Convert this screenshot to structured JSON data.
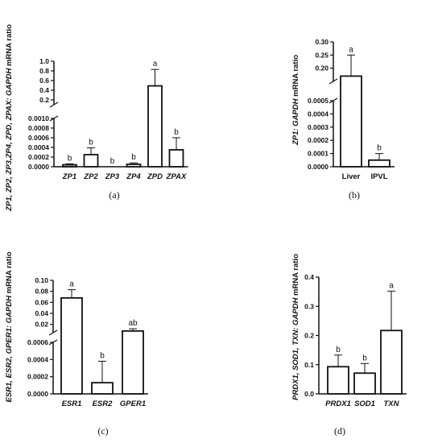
{
  "chart_data": [
    {
      "id": "a",
      "type": "bar",
      "panel_label": "(a)",
      "ylabel_parts": [
        {
          "text": "ZP1, ZP2, ZP3,ZP4, ZPD, ZPAX: GAPDH",
          "italic": true
        },
        {
          "text": " mRNA ratio",
          "italic": false
        }
      ],
      "categories": [
        "ZP1",
        "ZP2",
        "ZP3",
        "ZP4",
        "ZPD",
        "ZPAX"
      ],
      "values": [
        4e-05,
        0.00025,
        0.0,
        5e-05,
        0.49,
        0.00035
      ],
      "errors": [
        2e-05,
        0.00014,
        0.0,
        3e-05,
        0.34,
        0.00025
      ],
      "significance": [
        "b",
        "b",
        "b",
        "b",
        "a",
        "b"
      ],
      "axis_breaks": true,
      "lower_ylim": [
        0,
        0.001
      ],
      "lower_ticks": [
        "0.0000",
        "0.0002",
        "0.0004",
        "0.0006",
        "0.0008",
        "0.0010"
      ],
      "upper_ylim": [
        0.1,
        1.0
      ],
      "upper_ticks": [
        "0.2",
        "0.4",
        "0.6",
        "0.8",
        "1.0"
      ]
    },
    {
      "id": "b",
      "type": "bar",
      "panel_label": "(b)",
      "ylabel_parts": [
        {
          "text": "ZP1: GAPDH",
          "italic": true
        },
        {
          "text": " mRNA ratio",
          "italic": false
        }
      ],
      "categories": [
        "Liver",
        "IPVL"
      ],
      "categories_italic": false,
      "values": [
        0.17,
        5e-05
      ],
      "errors": [
        0.08,
        5e-05
      ],
      "significance": [
        "a",
        "b"
      ],
      "axis_breaks": true,
      "lower_ylim": [
        0,
        0.0005
      ],
      "lower_ticks": [
        "0.0000",
        "0.0001",
        "0.0002",
        "0.0003",
        "0.0004",
        "0.0005"
      ],
      "upper_ylim": [
        0.15,
        0.3
      ],
      "upper_ticks": [
        "0.20",
        "0.25",
        "0.30"
      ]
    },
    {
      "id": "c",
      "type": "bar",
      "panel_label": "(c)",
      "ylabel_parts": [
        {
          "text": "ESR1, ESR2, GPER1: GAPDH",
          "italic": true
        },
        {
          "text": " mRNA ratio",
          "italic": false
        }
      ],
      "categories": [
        "ESR1",
        "ESR2",
        "GPER1"
      ],
      "values": [
        0.068,
        0.00013,
        0.008
      ],
      "errors": [
        0.015,
        0.00025,
        0.004
      ],
      "significance": [
        "a",
        "b",
        "ab"
      ],
      "axis_breaks": true,
      "lower_ylim": [
        0,
        0.0006
      ],
      "lower_ticks": [
        "0.0000",
        "0.0002",
        "0.0004",
        "0.0006"
      ],
      "upper_ylim": [
        0.005,
        0.1
      ],
      "upper_ticks": [
        "0.02",
        "0.04",
        "0.06",
        "0.08",
        "0.10"
      ]
    },
    {
      "id": "d",
      "type": "bar",
      "panel_label": "(d)",
      "ylabel_parts": [
        {
          "text": "PRDX1, SOD1, TXN: GAPDH",
          "italic": true
        },
        {
          "text": " mRNA ratio",
          "italic": false
        }
      ],
      "categories": [
        "PRDX1",
        "SOD1",
        "TXN"
      ],
      "values": [
        0.093,
        0.071,
        0.217
      ],
      "errors": [
        0.04,
        0.033,
        0.135
      ],
      "significance": [
        "b",
        "b",
        "a"
      ],
      "axis_breaks": false,
      "ylim": [
        0,
        0.4
      ],
      "ticks": [
        "0.0",
        "0.1",
        "0.2",
        "0.3",
        "0.4"
      ]
    }
  ]
}
